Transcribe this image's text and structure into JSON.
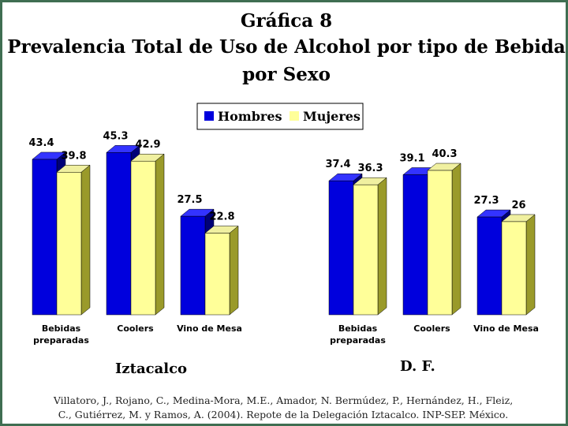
{
  "title_lines": [
    "Gráfica 8",
    "Prevalencia Total de Uso de Alcohol por tipo de Bebida",
    "por Sexo"
  ],
  "legend": [
    "Hombres",
    "Mujeres"
  ],
  "colors": {
    "hombres": "#0000dd",
    "mujeres": "#ffff99",
    "frame": "#3f6e52"
  },
  "source_lines": [
    "Villatoro, J., Rojano, C., Medina-Mora, M.E., Amador, N. Bermúdez, P., Hernández, H., Fleiz,",
    "C., Gutiérrez, M. y Ramos, A. (2004). Repote de la Delegación Iztacalco. INP-SEP. México."
  ],
  "chart_data": [
    {
      "type": "bar",
      "panel_label": "Iztacalco",
      "categories": [
        [
          "Bebidas",
          "preparadas"
        ],
        [
          "Coolers"
        ],
        [
          "Vino de Mesa"
        ]
      ],
      "series": [
        {
          "name": "Hombres",
          "values": [
            43.4,
            45.3,
            27.5
          ]
        },
        {
          "name": "Mujeres",
          "values": [
            39.8,
            42.9,
            22.8
          ]
        }
      ],
      "value_labels": [
        [
          "43.4",
          "45.3",
          "27.5"
        ],
        [
          "39.8",
          "42.9",
          "22.8"
        ]
      ]
    },
    {
      "type": "bar",
      "panel_label": "D. F.",
      "categories": [
        [
          "Bebidas",
          "preparadas"
        ],
        [
          "Coolers"
        ],
        [
          "Vino de Mesa"
        ]
      ],
      "series": [
        {
          "name": "Hombres",
          "values": [
            37.4,
            39.1,
            27.3
          ]
        },
        {
          "name": "Mujeres",
          "values": [
            36.3,
            40.3,
            26
          ]
        }
      ],
      "value_labels": [
        [
          "37.4",
          "39.1",
          "27.3"
        ],
        [
          "36.3",
          "40.3",
          "26"
        ]
      ]
    }
  ]
}
